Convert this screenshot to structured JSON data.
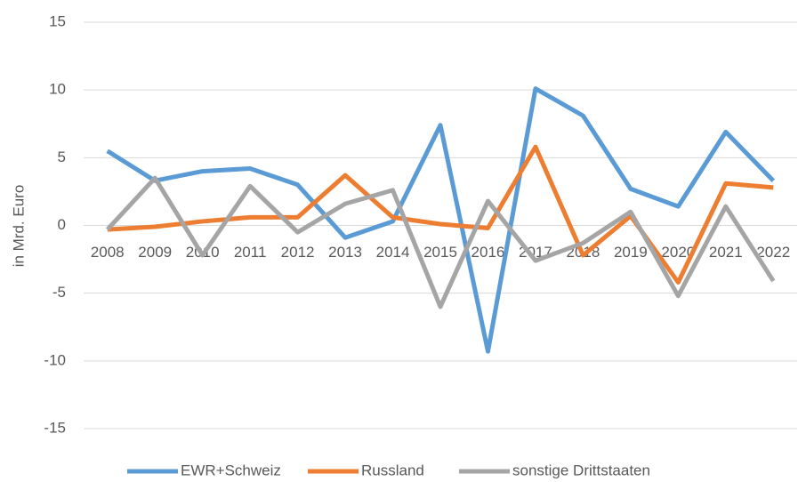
{
  "chart_data": {
    "type": "line",
    "y_label": "in Mrd. Euro",
    "categories": [
      "2008",
      "2009",
      "2010",
      "2011",
      "2012",
      "2013",
      "2014",
      "2015",
      "2016",
      "2017",
      "2018",
      "2019",
      "2020",
      "2021",
      "2022"
    ],
    "series": [
      {
        "name": "EWR+Schweiz",
        "color": "#5b9bd5",
        "values": [
          5.5,
          3.3,
          4.0,
          4.2,
          3.0,
          -0.9,
          0.3,
          7.4,
          -9.3,
          10.1,
          8.1,
          2.7,
          1.4,
          6.9,
          3.3
        ]
      },
      {
        "name": "Russland",
        "color": "#ed7d31",
        "values": [
          -0.3,
          -0.1,
          0.3,
          0.6,
          0.6,
          3.7,
          0.6,
          0.1,
          -0.2,
          5.8,
          -2.2,
          0.7,
          -4.2,
          3.1,
          2.8
        ]
      },
      {
        "name": "sonstige Drittstaaten",
        "color": "#a5a5a5",
        "values": [
          -0.3,
          3.5,
          -2.2,
          2.9,
          -0.5,
          1.6,
          2.6,
          -6.0,
          1.8,
          -2.6,
          -1.3,
          1.0,
          -5.2,
          1.4,
          -4.1
        ]
      }
    ],
    "ylim": [
      -15,
      15
    ],
    "yticks": [
      15,
      10,
      5,
      0,
      -5,
      -10,
      -15
    ],
    "grid": true,
    "legend": "bottom"
  }
}
